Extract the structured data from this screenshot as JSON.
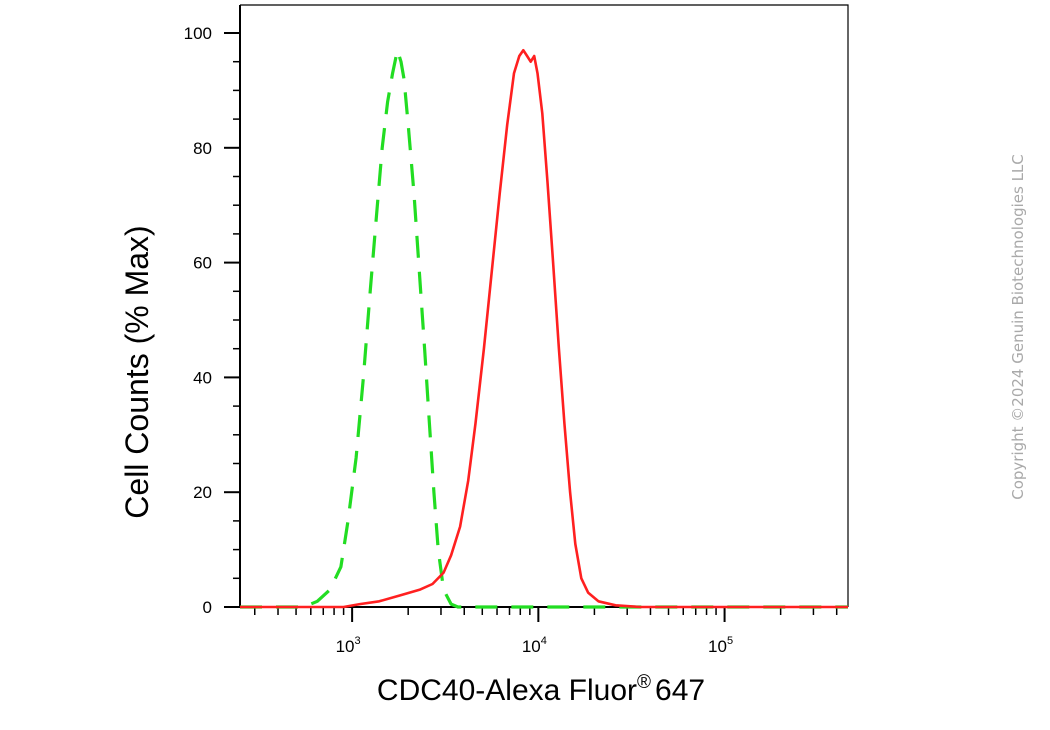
{
  "chart_data": {
    "type": "line",
    "x_scale": "log",
    "xlim": [
      250,
      460000
    ],
    "ylim": [
      0,
      105
    ],
    "grid": false,
    "legend": "none",
    "xlabel_main": "CDC40-Alexa Fluor",
    "xlabel_reg": "®",
    "xlabel_tail": "647",
    "ylabel": "Cell Counts (% Max)",
    "y_ticks": [
      {
        "value": 0,
        "label": "0"
      },
      {
        "value": 20,
        "label": "20"
      },
      {
        "value": 40,
        "label": "40"
      },
      {
        "value": 60,
        "label": "60"
      },
      {
        "value": 80,
        "label": "80"
      },
      {
        "value": 100,
        "label": "100"
      }
    ],
    "x_ticks": [
      {
        "value": 1000,
        "base": "10",
        "exp": "3"
      },
      {
        "value": 10000,
        "base": "10",
        "exp": "4"
      },
      {
        "value": 100000,
        "base": "10",
        "exp": "5"
      }
    ],
    "series": [
      {
        "color": "#22dd22",
        "style": "dashed",
        "points": [
          [
            250,
            0
          ],
          [
            450,
            0
          ],
          [
            550,
            0
          ],
          [
            650,
            1
          ],
          [
            760,
            3
          ],
          [
            870,
            7
          ],
          [
            950,
            15
          ],
          [
            1050,
            26
          ],
          [
            1150,
            40
          ],
          [
            1250,
            55
          ],
          [
            1350,
            68
          ],
          [
            1450,
            80
          ],
          [
            1550,
            88
          ],
          [
            1650,
            93
          ],
          [
            1750,
            97
          ],
          [
            1830,
            95
          ],
          [
            1900,
            92
          ],
          [
            2000,
            84
          ],
          [
            2150,
            72
          ],
          [
            2300,
            58
          ],
          [
            2450,
            45
          ],
          [
            2600,
            32
          ],
          [
            2750,
            20
          ],
          [
            2900,
            10
          ],
          [
            3100,
            3
          ],
          [
            3400,
            0.5
          ],
          [
            3700,
            0
          ],
          [
            460000,
            0
          ]
        ]
      },
      {
        "color": "#ff2020",
        "style": "solid",
        "points": [
          [
            250,
            0
          ],
          [
            900,
            0
          ],
          [
            1100,
            0.5
          ],
          [
            1400,
            1
          ],
          [
            1800,
            2
          ],
          [
            2300,
            3
          ],
          [
            2700,
            4
          ],
          [
            3100,
            6
          ],
          [
            3400,
            9
          ],
          [
            3800,
            14
          ],
          [
            4200,
            22
          ],
          [
            4600,
            32
          ],
          [
            5100,
            45
          ],
          [
            5600,
            58
          ],
          [
            6200,
            72
          ],
          [
            6800,
            84
          ],
          [
            7400,
            93
          ],
          [
            7900,
            96
          ],
          [
            8300,
            97
          ],
          [
            8700,
            96
          ],
          [
            9100,
            95
          ],
          [
            9500,
            96
          ],
          [
            9900,
            93
          ],
          [
            10500,
            86
          ],
          [
            11200,
            74
          ],
          [
            12000,
            60
          ],
          [
            12900,
            45
          ],
          [
            13800,
            32
          ],
          [
            14800,
            20
          ],
          [
            15800,
            11
          ],
          [
            17000,
            5
          ],
          [
            18500,
            2.5
          ],
          [
            21000,
            1
          ],
          [
            26000,
            0.3
          ],
          [
            35000,
            0
          ],
          [
            460000,
            0
          ]
        ]
      }
    ]
  },
  "copyright": "Copyright ©2024 Genuin Biotechnologies LLC",
  "colors": {
    "axis": "#000000",
    "control": "#22dd22",
    "sample": "#ff2020",
    "copyright": "#a9a9a9"
  }
}
